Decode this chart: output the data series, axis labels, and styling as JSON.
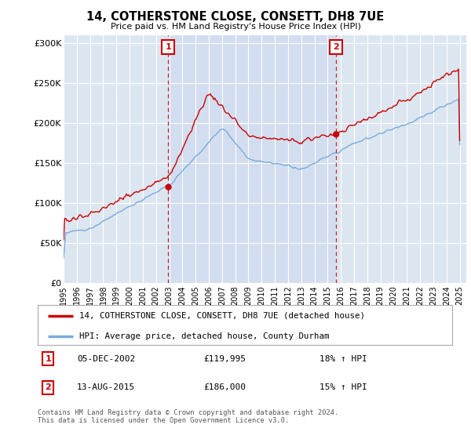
{
  "title": "14, COTHERSTONE CLOSE, CONSETT, DH8 7UE",
  "subtitle": "Price paid vs. HM Land Registry's House Price Index (HPI)",
  "background_color": "#ffffff",
  "plot_bg_color": "#dce6f1",
  "plot_bg_highlight": "#ccd9ee",
  "ylim": [
    0,
    310000
  ],
  "yticks": [
    0,
    50000,
    100000,
    150000,
    200000,
    250000,
    300000
  ],
  "ytick_labels": [
    "£0",
    "£50K",
    "£100K",
    "£150K",
    "£200K",
    "£250K",
    "£300K"
  ],
  "transaction1_date": "05-DEC-2002",
  "transaction1_price": 119995,
  "transaction1_hpi": "18% ↑ HPI",
  "transaction1_year": 2002.92,
  "transaction2_date": "13-AUG-2015",
  "transaction2_price": 186000,
  "transaction2_hpi": "15% ↑ HPI",
  "transaction2_year": 2015.62,
  "legend1": "14, COTHERSTONE CLOSE, CONSETT, DH8 7UE (detached house)",
  "legend2": "HPI: Average price, detached house, County Durham",
  "footer": "Contains HM Land Registry data © Crown copyright and database right 2024.\nThis data is licensed under the Open Government Licence v3.0.",
  "line1_color": "#cc0000",
  "line2_color": "#7aaadd",
  "vline_color": "#cc0000",
  "box_color": "#cc0000",
  "xmin": 1995,
  "xmax": 2025.5
}
